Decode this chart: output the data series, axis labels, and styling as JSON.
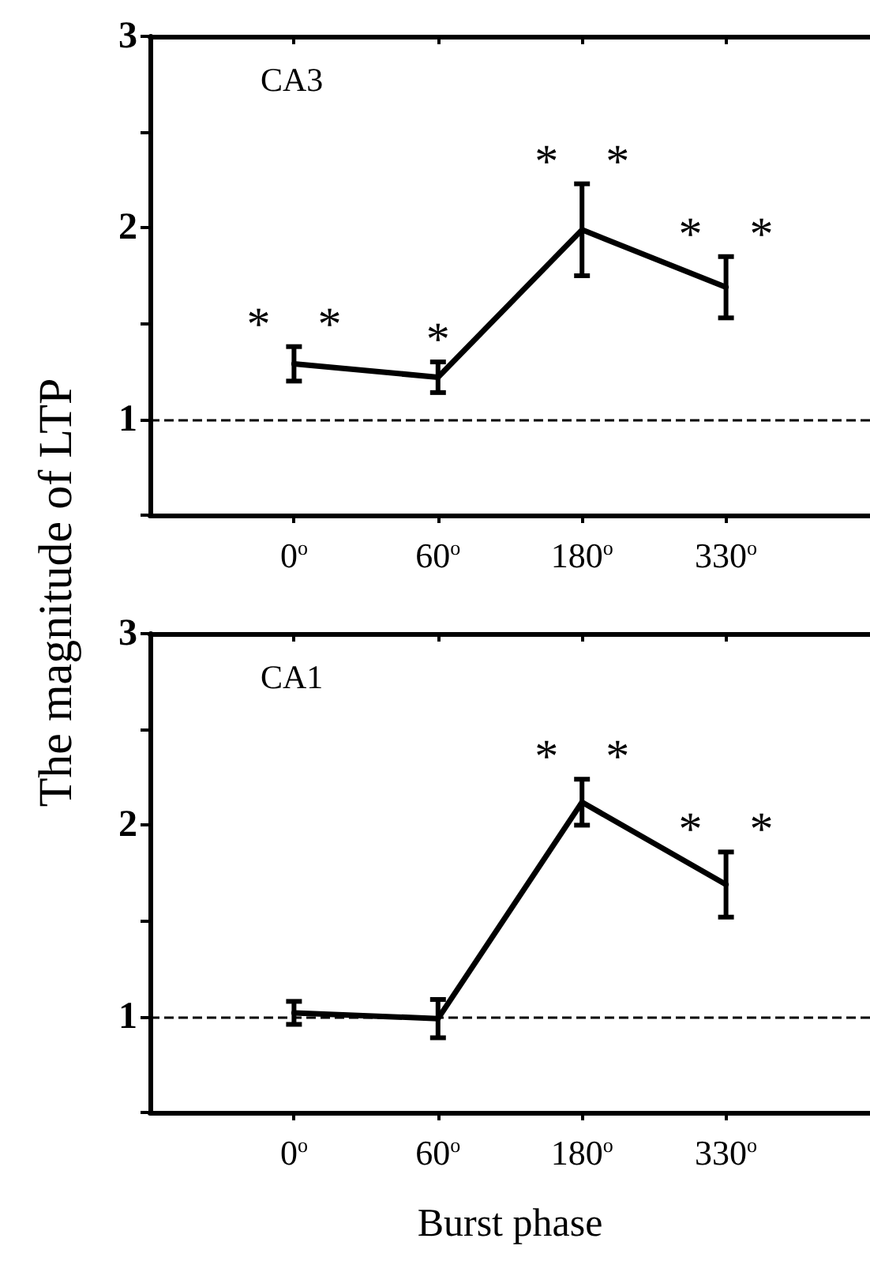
{
  "chart_data": [
    {
      "type": "line",
      "title": "CA3",
      "ylabel": "The magnitude of LTP",
      "categories": [
        "0$^{o}$",
        "60$^{o}$",
        "180$^{o}$",
        "330$^{o}$"
      ],
      "series": [
        {
          "color": "#000000",
          "values": [
            1.29,
            1.22,
            1.99,
            1.69
          ],
          "errors": [
            0.09,
            0.08,
            0.24,
            0.16
          ]
        }
      ],
      "ylim": [
        0.5,
        3
      ],
      "yticks": [
        {
          "value": 0.5,
          "label": null
        },
        1,
        {
          "value": 1.5,
          "label": null
        },
        2,
        {
          "value": 2.5,
          "label": null
        },
        3
      ],
      "ref_lines": [
        {
          "axis": "y",
          "value": 1,
          "color": "#000000",
          "line_style": "dashed"
        }
      ],
      "annotations": [
        {
          "text": "* *",
          "x": "0$^{o}$",
          "y": 1.38
        },
        {
          "text": "*",
          "x": "60$^{o}$",
          "y": 1.3
        },
        {
          "text": "* *",
          "x": "180$^{o}$",
          "y": 2.23
        },
        {
          "text": "* *",
          "x": "330$^{o}$",
          "y": 1.85
        }
      ],
      "grid": false,
      "marker": "none",
      "line_style": "solid"
    },
    {
      "type": "line",
      "title": "CA1",
      "xlabel": "Burst phase",
      "categories": [
        "0$^{o}$",
        "60$^{o}$",
        "180$^{o}$",
        "330$^{o}$"
      ],
      "series": [
        {
          "color": "#000000",
          "values": [
            1.02,
            0.99,
            2.12,
            1.69
          ],
          "errors": [
            0.06,
            0.1,
            0.12,
            0.17
          ]
        }
      ],
      "ylim": [
        0.5,
        3
      ],
      "yticks": [
        {
          "value": 0.5,
          "label": null
        },
        1,
        {
          "value": 1.5,
          "label": null
        },
        2,
        {
          "value": 2.5,
          "label": null
        },
        3
      ],
      "ref_lines": [
        {
          "axis": "y",
          "value": 1,
          "color": "#000000",
          "line_style": "dashed"
        }
      ],
      "annotations": [
        {
          "text": "* *",
          "x": "180$^{o}$",
          "y": 2.24
        },
        {
          "text": "* *",
          "x": "330$^{o}$",
          "y": 1.86
        }
      ],
      "grid": false,
      "marker": "none",
      "line_style": "solid"
    }
  ]
}
